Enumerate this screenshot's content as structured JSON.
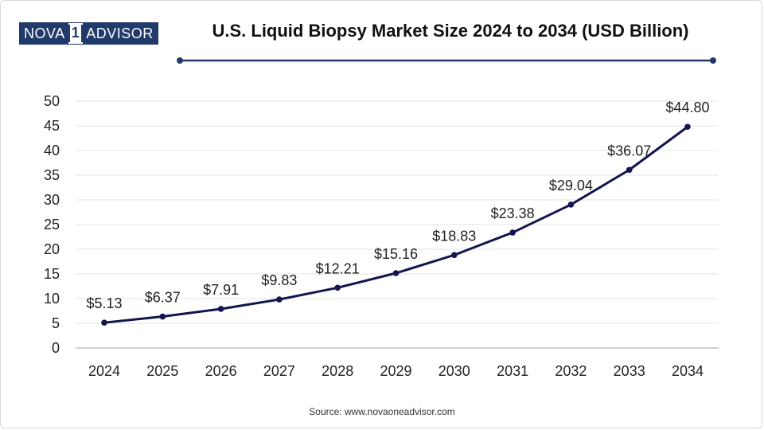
{
  "brand": {
    "logo_left": "NOVA",
    "logo_mid": "1",
    "logo_right": "ADVISOR"
  },
  "source": "Source: www.novaoneadvisor.com",
  "colors": {
    "line": "#14154f",
    "accent": "#1f3a6b",
    "grid": "#e3e3e3",
    "axis": "#bfbfbf"
  },
  "chart_data": {
    "type": "line",
    "title": "U.S. Liquid Biopsy Market Size 2024 to 2034 (USD Billion)",
    "xlabel": "",
    "ylabel": "",
    "categories": [
      "2024",
      "2025",
      "2026",
      "2027",
      "2028",
      "2029",
      "2030",
      "2031",
      "2032",
      "2033",
      "2034"
    ],
    "series": [
      {
        "name": "U.S. Liquid Biopsy Market Size",
        "values": [
          5.13,
          6.37,
          7.91,
          9.83,
          12.21,
          15.16,
          18.83,
          23.38,
          29.04,
          36.07,
          44.8
        ],
        "labels": [
          "$5.13",
          "$6.37",
          "$7.91",
          "$9.83",
          "$12.21",
          "$15.16",
          "$18.83",
          "$23.38",
          "$29.04",
          "$36.07",
          "$44.80"
        ]
      }
    ],
    "ylim": [
      0,
      50
    ],
    "yticks": [
      0,
      5,
      10,
      15,
      20,
      25,
      30,
      35,
      40,
      45,
      50
    ],
    "grid": true
  }
}
